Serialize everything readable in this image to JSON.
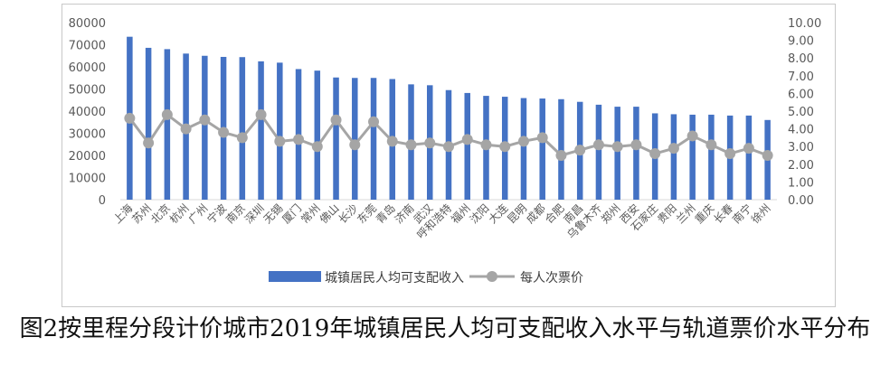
{
  "caption": "图2按里程分段计价城市2019年城镇居民人均可支配收入水平与轨道票价水平分布",
  "chart_data": {
    "type": "bar+line",
    "categories": [
      "上海",
      "苏州",
      "北京",
      "杭州",
      "广州",
      "宁波",
      "南京",
      "深圳",
      "无锡",
      "厦门",
      "常州",
      "佛山",
      "长沙",
      "东莞",
      "青岛",
      "济南",
      "武汉",
      "呼和浩特",
      "福州",
      "沈阳",
      "大连",
      "昆明",
      "成都",
      "合肥",
      "南昌",
      "乌鲁木齐",
      "郑州",
      "西安",
      "石家庄",
      "贵阳",
      "兰州",
      "重庆",
      "长春",
      "南宁",
      "徐州"
    ],
    "series": [
      {
        "name": "城镇居民人均可支配收入",
        "type": "bar",
        "axis": "left",
        "color": "#4472c4",
        "values": [
          73600,
          68600,
          68000,
          66000,
          65000,
          64500,
          64400,
          62500,
          61900,
          59000,
          58300,
          55200,
          55000,
          55000,
          54500,
          52100,
          51700,
          49500,
          48200,
          46900,
          46500,
          45900,
          45700,
          45400,
          44200,
          42900,
          42000,
          42000,
          39000,
          38600,
          38400,
          38400,
          38000,
          38000,
          36000
        ]
      },
      {
        "name": "每人次票价",
        "type": "line",
        "axis": "right",
        "color": "#a5a5a5",
        "values": [
          4.6,
          3.2,
          4.8,
          4.0,
          4.5,
          3.8,
          3.5,
          4.8,
          3.3,
          3.4,
          3.0,
          4.5,
          3.1,
          4.4,
          3.3,
          3.1,
          3.2,
          3.0,
          3.4,
          3.1,
          3.0,
          3.3,
          3.5,
          2.5,
          2.8,
          3.1,
          3.0,
          3.1,
          2.6,
          2.9,
          3.6,
          3.1,
          2.6,
          2.9,
          2.5
        ]
      }
    ],
    "y_left": {
      "min": 0,
      "max": 80000,
      "ticks": [
        "0",
        "10000",
        "20000",
        "30000",
        "40000",
        "50000",
        "60000",
        "70000",
        "80000"
      ]
    },
    "y_right": {
      "min": 0,
      "max": 10,
      "ticks": [
        "0.00",
        "1.00",
        "2.00",
        "3.00",
        "4.00",
        "5.00",
        "6.00",
        "7.00",
        "8.00",
        "9.00",
        "10.00"
      ]
    },
    "grid": false,
    "legend": "bottom"
  }
}
